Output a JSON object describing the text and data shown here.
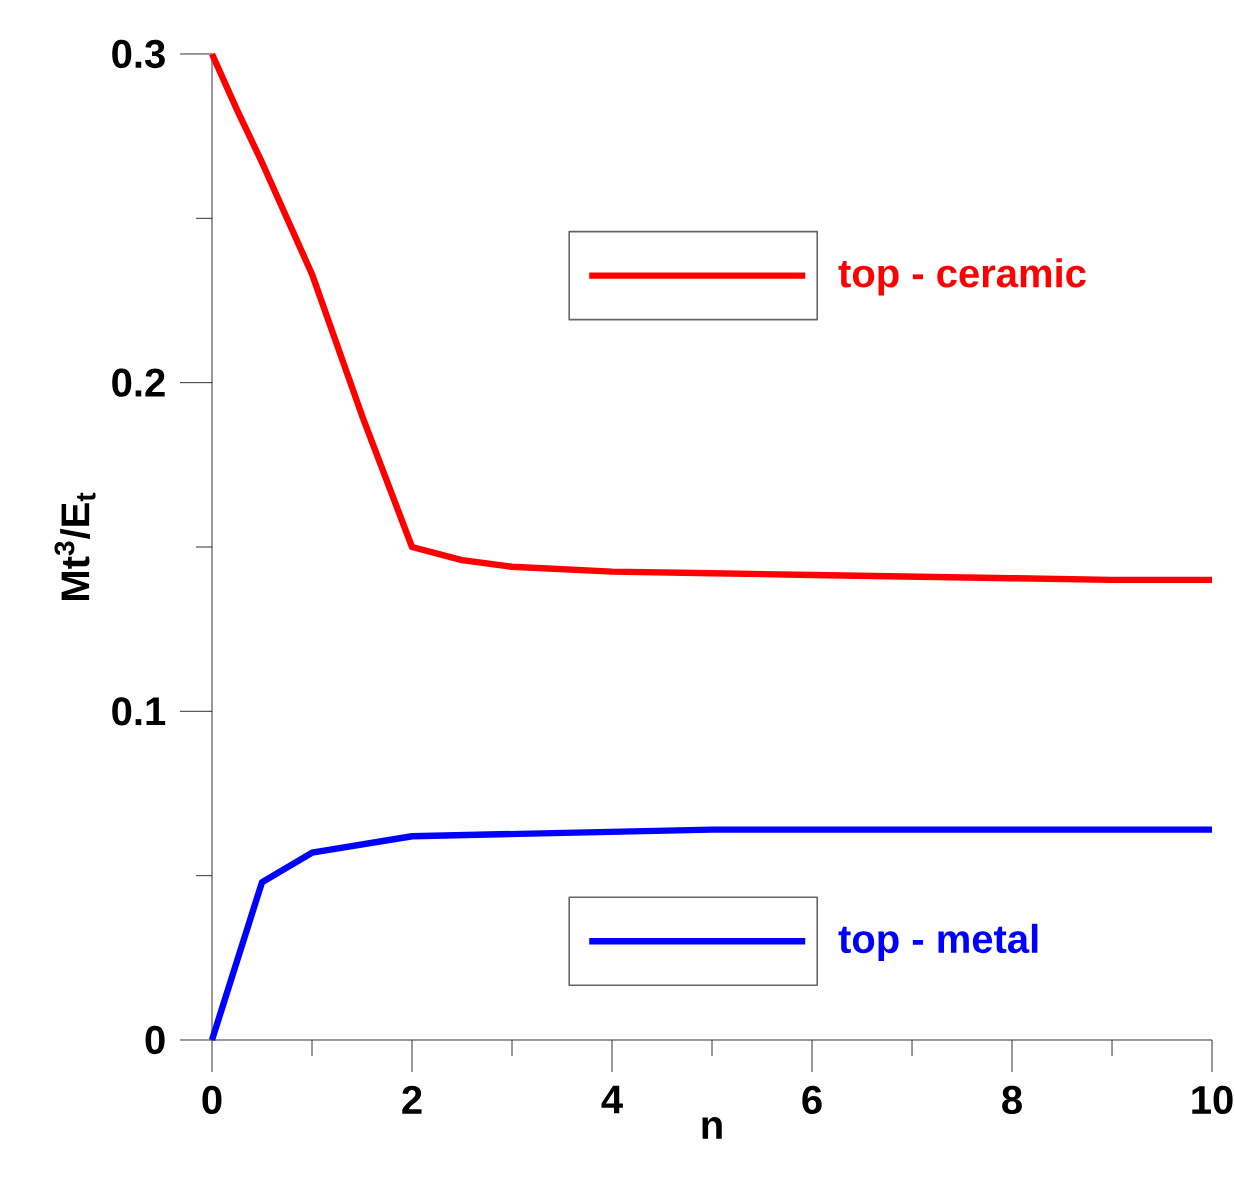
{
  "chart_data": {
    "type": "line",
    "xlabel": "n",
    "ylabel": "Mt$^{3}$/E$_{t}$",
    "xlim": [
      0,
      10
    ],
    "ylim": [
      0,
      0.3
    ],
    "xticks": [
      0,
      2,
      4,
      6,
      8,
      10
    ],
    "yticks": [
      0,
      0.1,
      0.2,
      0.3
    ],
    "legend": "right",
    "grid": false,
    "marker": "none",
    "line_style": "solid",
    "series": [
      {
        "name": "top - ceramic",
        "color": "#ff0000",
        "x": [
          0,
          0.25,
          0.5,
          1,
          1.5,
          2,
          2.5,
          3,
          4,
          5,
          6,
          8,
          9,
          10
        ],
        "values": [
          0.3,
          0.283,
          0.267,
          0.233,
          0.19,
          0.15,
          0.146,
          0.144,
          0.1425,
          0.142,
          0.1415,
          0.1405,
          0.14,
          0.14
        ]
      },
      {
        "name": "top - metal",
        "color": "#0000ff",
        "x": [
          0,
          0.5,
          1,
          2,
          5,
          10
        ],
        "values": [
          0,
          0.048,
          0.057,
          0.062,
          0.064,
          0.064
        ]
      }
    ]
  }
}
